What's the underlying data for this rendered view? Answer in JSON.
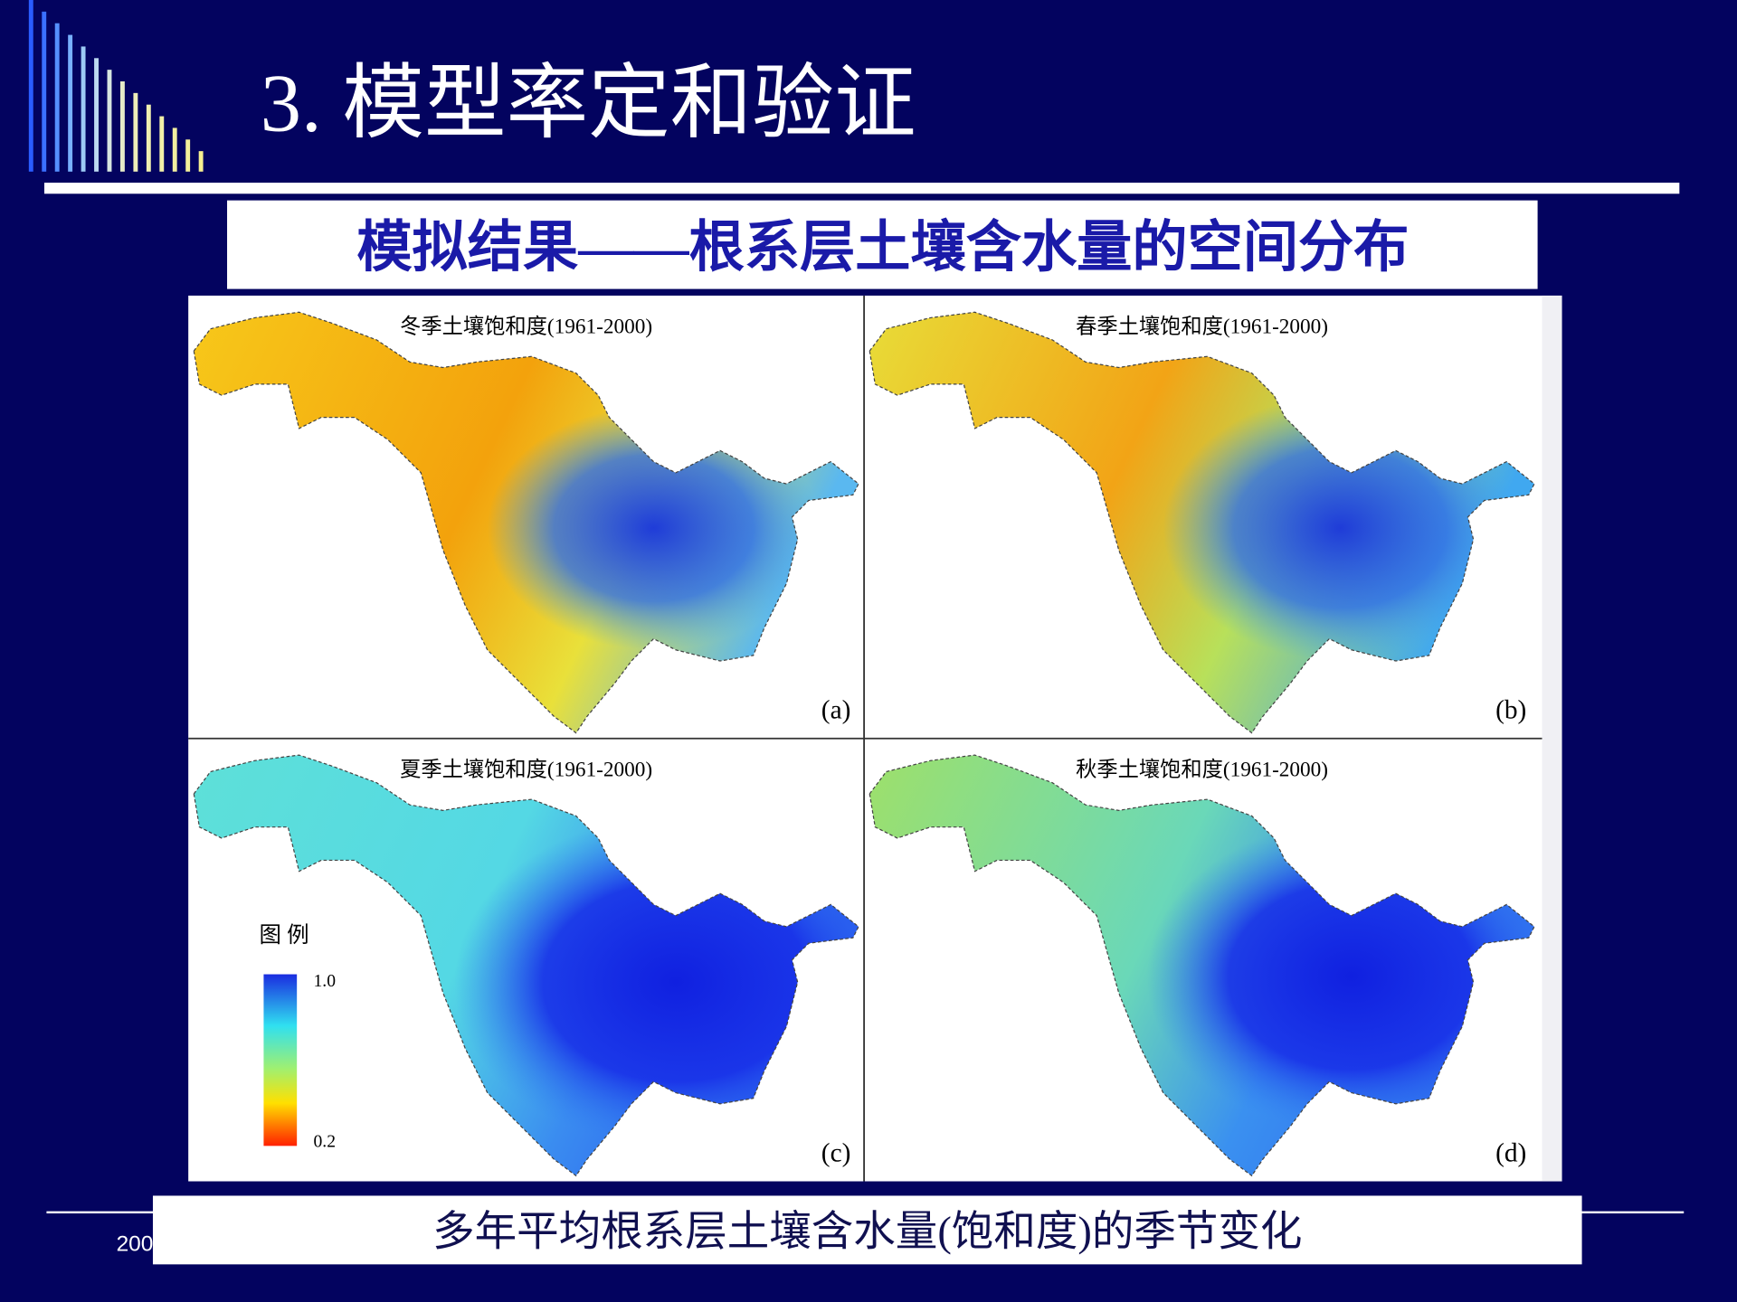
{
  "header": {
    "title": "3.  模型率定和验证"
  },
  "subtitle": "模拟结果——根系层土壤含水量的空间分布",
  "panels": [
    {
      "title": "冬季土壤饱和度(1961-2000)",
      "label": "(a)"
    },
    {
      "title": "春季土壤饱和度(1961-2000)",
      "label": "(b)"
    },
    {
      "title": "夏季土壤饱和度(1961-2000)",
      "label": "(c)"
    },
    {
      "title": "秋季土壤饱和度(1961-2000)",
      "label": "(d)"
    }
  ],
  "legend": {
    "title": "图 例",
    "max": "1.0",
    "min": "0.2"
  },
  "caption": "多年平均根系层土壤含水量(饱和度)的季节变化",
  "footer": "200"
}
